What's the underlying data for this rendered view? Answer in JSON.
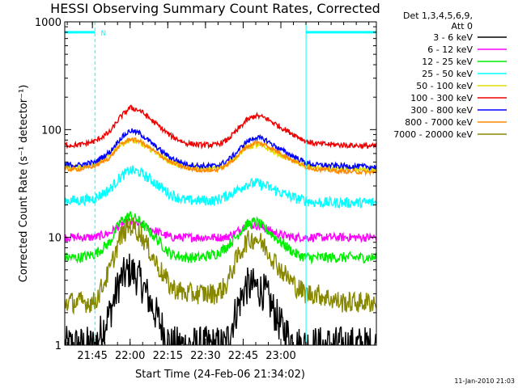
{
  "chart_data": {
    "type": "line",
    "title": "HESSI Observing Summary Count Rates, Corrected",
    "xlabel": "Start Time (24-Feb-06 21:34:02)",
    "ylabel": "Corrected Count Rate (s⁻¹ detector⁻¹)",
    "y_scale": "log",
    "ylim": [
      1,
      1000
    ],
    "xlim_minutes": [
      0,
      124
    ],
    "x_ticks": [
      {
        "label": "21:45",
        "minute": 11
      },
      {
        "label": "22:00",
        "minute": 26
      },
      {
        "label": "22:15",
        "minute": 41
      },
      {
        "label": "22:30",
        "minute": 56
      },
      {
        "label": "22:45",
        "minute": 71
      },
      {
        "label": "23:00",
        "minute": 86
      }
    ],
    "y_ticks": [
      {
        "label": "1",
        "value": 1
      },
      {
        "label": "10",
        "value": 10
      },
      {
        "label": "100",
        "value": 100
      },
      {
        "label": "1000",
        "value": 1000
      }
    ],
    "legend": {
      "placement": "right",
      "header": [
        "Det 1,3,4,5,6,9,",
        "Att 0"
      ],
      "entries": [
        {
          "label": "3 - 6 keV",
          "color": "#000000"
        },
        {
          "label": "6 - 12 keV",
          "color": "#ff00ff"
        },
        {
          "label": "12 - 25 keV",
          "color": "#00ee00"
        },
        {
          "label": "25 - 50 keV",
          "color": "#00ffff"
        },
        {
          "label": "50 - 100 keV",
          "color": "#dddd00"
        },
        {
          "label": "100 - 300 keV",
          "color": "#ee0000"
        },
        {
          "label": "300 - 800 keV",
          "color": "#0000ff"
        },
        {
          "label": "800 - 7000 keV",
          "color": "#ff8800"
        },
        {
          "label": "7000 - 20000 keV",
          "color": "#888800"
        }
      ]
    },
    "x_minutes": [
      0,
      6,
      12,
      18,
      22,
      26,
      30,
      36,
      42,
      48,
      54,
      60,
      64,
      68,
      72,
      76,
      80,
      86,
      92,
      96,
      100,
      110,
      124
    ],
    "series": [
      {
        "name": "3 - 6 keV",
        "color": "#000000",
        "noise": 0.18,
        "values": [
          1,
          1,
          1,
          2,
          4,
          5,
          4,
          2,
          1,
          1,
          1,
          1,
          1,
          2,
          3.5,
          3.5,
          3,
          1.5,
          1,
          1,
          1,
          1,
          1
        ]
      },
      {
        "name": "6 - 12 keV",
        "color": "#ff00ff",
        "noise": 0.04,
        "values": [
          10,
          10,
          10,
          11,
          13,
          14,
          13,
          11.5,
          10,
          10,
          10,
          10,
          10,
          11,
          13,
          13,
          12,
          10.5,
          10,
          10,
          10,
          10,
          10
        ]
      },
      {
        "name": "12 - 25 keV",
        "color": "#00ee00",
        "noise": 0.05,
        "values": [
          6.5,
          6.5,
          7,
          9,
          14,
          16,
          14,
          10,
          7,
          6.5,
          6.5,
          7,
          8,
          10,
          13,
          14,
          12,
          9,
          7,
          6.5,
          6.5,
          6.5,
          6.5
        ]
      },
      {
        "name": "25 - 50 keV",
        "color": "#00ffff",
        "noise": 0.05,
        "values": [
          22,
          22,
          23,
          28,
          36,
          42,
          40,
          32,
          25,
          22,
          22,
          22,
          24,
          27,
          31,
          32,
          30,
          26,
          23,
          22,
          21,
          21,
          21
        ]
      },
      {
        "name": "50 - 100 keV",
        "color": "#dddd00",
        "noise": 0.025,
        "values": [
          45,
          45,
          48,
          58,
          72,
          80,
          75,
          62,
          50,
          45,
          44,
          44,
          47,
          55,
          68,
          72,
          68,
          58,
          50,
          46,
          44,
          43,
          42
        ]
      },
      {
        "name": "100 - 300 keV",
        "color": "#ee0000",
        "noise": 0.025,
        "values": [
          72,
          72,
          78,
          95,
          130,
          160,
          150,
          115,
          88,
          75,
          72,
          72,
          78,
          95,
          120,
          135,
          128,
          105,
          88,
          78,
          74,
          72,
          70
        ]
      },
      {
        "name": "300 - 800 keV",
        "color": "#0000ff",
        "noise": 0.025,
        "values": [
          47,
          47,
          50,
          62,
          82,
          98,
          92,
          70,
          55,
          48,
          46,
          46,
          50,
          60,
          76,
          85,
          80,
          65,
          55,
          49,
          47,
          46,
          45
        ]
      },
      {
        "name": "800 - 7000 keV",
        "color": "#ff8800",
        "noise": 0.02,
        "values": [
          43,
          43,
          46,
          55,
          72,
          82,
          78,
          62,
          50,
          44,
          42,
          42,
          46,
          55,
          68,
          76,
          72,
          60,
          50,
          45,
          43,
          41,
          40
        ]
      },
      {
        "name": "7000 - 20000 keV",
        "color": "#888800",
        "noise": 0.1,
        "values": [
          2.5,
          2.5,
          2.5,
          5,
          10,
          13,
          11,
          6,
          3.5,
          3,
          3,
          3,
          3.5,
          6,
          9,
          10,
          8,
          5,
          3.5,
          3,
          3,
          2.5,
          2.5
        ]
      }
    ],
    "markers": {
      "color": "#00ffff",
      "night_intervals_minutes": [
        [
          0,
          12
        ],
        [
          96,
          124
        ]
      ],
      "night_level": 800,
      "label": "N",
      "label_minute": 13,
      "vlines_solid_minutes": [
        0,
        96
      ],
      "vlines_dashed_minutes": [
        12,
        124
      ]
    }
  },
  "footer": {
    "timestamp": "11-Jan-2010 21:03"
  }
}
